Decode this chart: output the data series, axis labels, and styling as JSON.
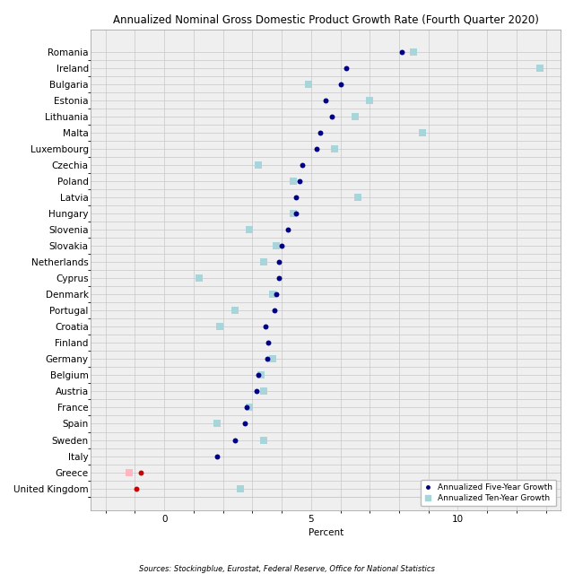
{
  "title": "Annualized Nominal Gross Domestic Product Growth Rate (Fourth Quarter 2020)",
  "xlabel": "Percent",
  "source_text": "Sources: Stockingblue, Eurostat, Federal Reserve, Office for National Statistics",
  "countries": [
    "Romania",
    "Ireland",
    "Bulgaria",
    "Estonia",
    "Lithuania",
    "Malta",
    "Luxembourg",
    "Czechia",
    "Poland",
    "Latvia",
    "Hungary",
    "Slovenia",
    "Slovakia",
    "Netherlands",
    "Cyprus",
    "Denmark",
    "Portugal",
    "Croatia",
    "Finland",
    "Germany",
    "Belgium",
    "Austria",
    "France",
    "Spain",
    "Sweden",
    "Italy",
    "Greece",
    "United Kingdom"
  ],
  "five_year": [
    8.1,
    6.2,
    6.0,
    5.5,
    5.7,
    5.3,
    5.2,
    4.7,
    4.6,
    4.5,
    4.5,
    4.2,
    4.0,
    3.9,
    3.9,
    3.8,
    3.75,
    3.45,
    3.55,
    3.5,
    3.2,
    3.15,
    2.8,
    2.75,
    2.4,
    1.8,
    -0.8,
    -0.95
  ],
  "ten_year": [
    8.5,
    12.8,
    4.9,
    7.0,
    6.5,
    8.8,
    5.8,
    3.2,
    4.4,
    6.6,
    4.4,
    2.9,
    3.8,
    3.4,
    1.2,
    3.7,
    2.4,
    1.9,
    null,
    3.7,
    3.3,
    3.4,
    2.9,
    1.8,
    3.4,
    null,
    -1.2,
    2.6
  ],
  "five_year_color": "#000080",
  "ten_year_color": "#A8D5DA",
  "greece_five_color": "#CC0000",
  "uk_five_color": "#CC0000",
  "greece_ten_color": "#FFB6C1",
  "xlim": [
    -2.5,
    13.5
  ],
  "xticks": [
    0,
    5,
    10
  ],
  "grid_minor_step": 1,
  "grid_color": "#C8C8C8",
  "bg_color": "#EFEFEF",
  "marker_size_circle": 18,
  "marker_size_square": 28,
  "title_fontsize": 8.5,
  "tick_fontsize": 7.5,
  "label_fontsize": 7.5,
  "source_fontsize": 6.0
}
